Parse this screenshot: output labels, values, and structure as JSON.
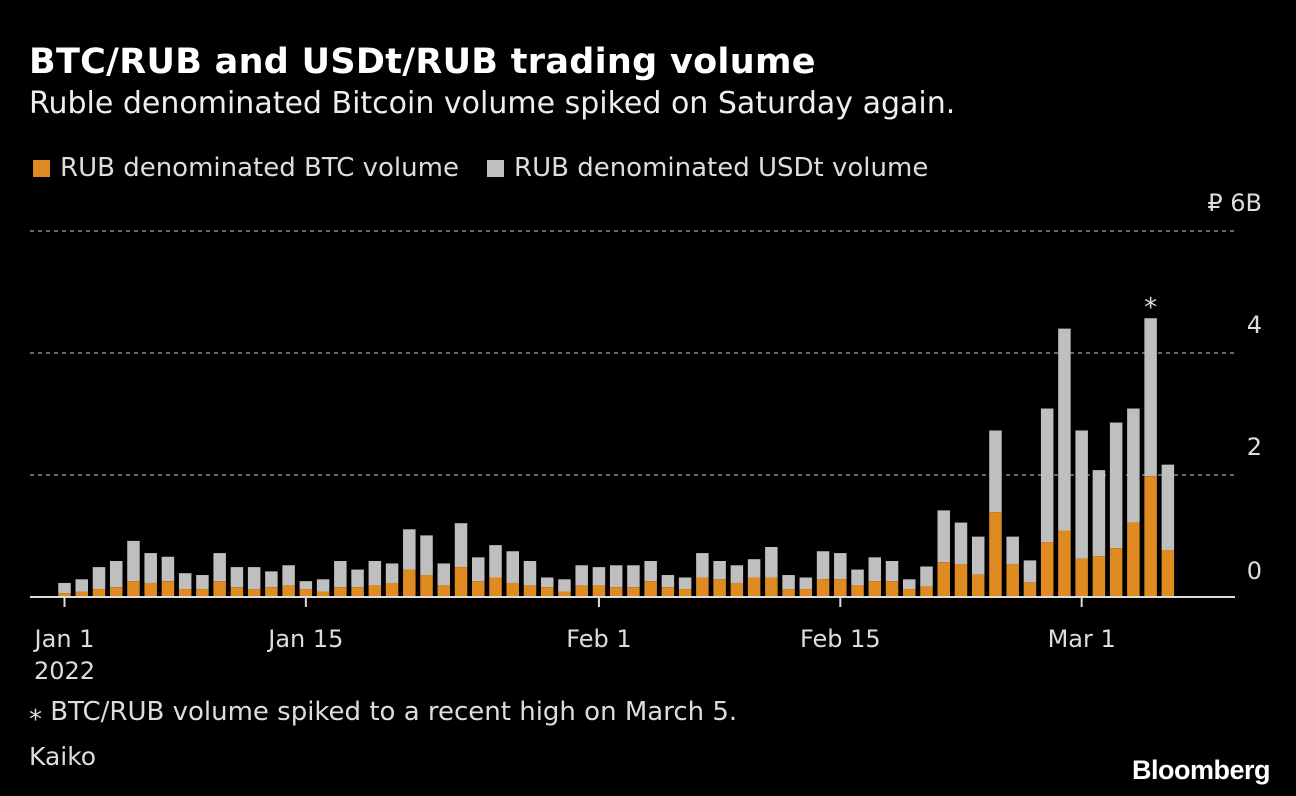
{
  "header": {
    "title": "BTC/RUB and USDt/RUB trading volume",
    "subtitle": "Ruble denominated Bitcoin volume spiked on Saturday again."
  },
  "footer": {
    "footnote": "⁎ BTC/RUB volume spiked to a recent high on March 5.",
    "source": "Kaiko",
    "logo": "Bloomberg"
  },
  "chart_data": {
    "type": "bar",
    "stacked": true,
    "ylabel": "",
    "xlabel": "",
    "y_unit_label": "₽ 6B",
    "ylim": [
      0,
      6
    ],
    "y_ticks": [
      "0",
      "2",
      "4",
      "₽ 6B"
    ],
    "y_tick_values": [
      0,
      2,
      4,
      6
    ],
    "x_ticks": [
      {
        "label": "Jan 1",
        "day": 0
      },
      {
        "label": "Jan 15",
        "day": 14
      },
      {
        "label": "Feb 1",
        "day": 31
      },
      {
        "label": "Feb 15",
        "day": 45
      },
      {
        "label": "Mar 1",
        "day": 59
      }
    ],
    "x_year_label": "2022",
    "x_range": [
      "2022-01-01",
      "2022-03-06"
    ],
    "grid": true,
    "legend_position": "top-left",
    "annotation": {
      "label": "⁎",
      "date": "2022-03-05"
    },
    "colors": {
      "btc": "#e08b22",
      "usdt": "#bfbfbf",
      "grid": "#888888",
      "axis": "#dddddd"
    },
    "series": [
      {
        "name": "RUB denominated BTC volume",
        "values": [
          0.06,
          0.09,
          0.13,
          0.16,
          0.26,
          0.23,
          0.26,
          0.13,
          0.13,
          0.26,
          0.16,
          0.13,
          0.16,
          0.19,
          0.13,
          0.09,
          0.16,
          0.16,
          0.19,
          0.23,
          0.45,
          0.36,
          0.19,
          0.49,
          0.26,
          0.32,
          0.23,
          0.19,
          0.16,
          0.09,
          0.19,
          0.19,
          0.16,
          0.16,
          0.26,
          0.16,
          0.13,
          0.32,
          0.29,
          0.23,
          0.32,
          0.32,
          0.13,
          0.13,
          0.29,
          0.29,
          0.19,
          0.26,
          0.26,
          0.13,
          0.17,
          0.57,
          0.54,
          0.37,
          1.39,
          0.54,
          0.24,
          0.9,
          1.09,
          0.63,
          0.67,
          0.8,
          1.22,
          1.98,
          0.77
        ]
      },
      {
        "name": "RUB denominated USDt volume",
        "values": [
          0.17,
          0.2,
          0.36,
          0.43,
          0.66,
          0.49,
          0.4,
          0.26,
          0.23,
          0.46,
          0.33,
          0.36,
          0.26,
          0.33,
          0.13,
          0.2,
          0.43,
          0.29,
          0.4,
          0.32,
          0.66,
          0.65,
          0.36,
          0.72,
          0.39,
          0.53,
          0.52,
          0.4,
          0.16,
          0.2,
          0.33,
          0.3,
          0.36,
          0.36,
          0.33,
          0.2,
          0.19,
          0.4,
          0.3,
          0.29,
          0.3,
          0.5,
          0.23,
          0.19,
          0.46,
          0.43,
          0.26,
          0.39,
          0.33,
          0.16,
          0.33,
          0.85,
          0.68,
          0.62,
          1.34,
          0.45,
          0.36,
          2.19,
          3.31,
          2.1,
          1.41,
          2.06,
          1.87,
          2.59,
          1.4
        ]
      }
    ]
  }
}
